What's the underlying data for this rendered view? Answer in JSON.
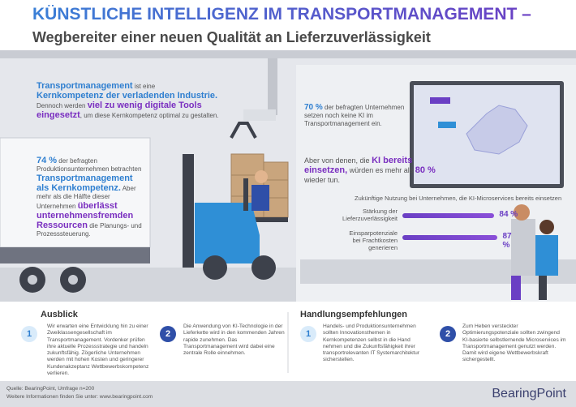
{
  "header": {
    "title": "KÜNSTLICHE INTELLIGENZ IM TRANSPORTMANAGEMENT –",
    "subtitle": "Wegbereiter einer neuen Qualität an Lieferzuverlässigkeit"
  },
  "intro": [
    "Transportmanagement",
    " ist eine ",
    "Kernkompetenz der verladenden Industrie.",
    " Dennoch werden ",
    "viel zu wenig digitale Tools eingesetzt",
    ", um diese Kernkompetenz optimal zu gestalten."
  ],
  "finding_1": [
    "74 %",
    " der befragten Produktionsunternehmen betrachten ",
    "Transportmanagement als Kernkompetenz.",
    " Aber mehr als die Hälfte dieser Unternehmen ",
    "überlässt unternehmensfremden Ressourcen",
    " die Planungs- und Prozesssteuerung."
  ],
  "finding_2": [
    "70 %",
    " der befragten Unternehmen setzen noch keine KI im Transportmanagement ein."
  ],
  "finding_3": [
    "Aber von denen, die ",
    "KI bereits einsetzen,",
    " würden es mehr als ",
    "80 %",
    " wieder tun."
  ],
  "usage": {
    "title": "Zukünftige Nutzung bei Unternehmen, die KI-Microservices bereits einsetzen",
    "bars": [
      {
        "label": "Stärkung der Lieferzuverlässigkeit",
        "value": 84,
        "value_label": "84 %"
      },
      {
        "label": "Einsparpotenziale bei Frachtkosten generieren",
        "value": 87,
        "value_label": "87 %"
      }
    ]
  },
  "outlook": {
    "heading": "Ausblick",
    "items": [
      {
        "number": "1",
        "text": "Wir erwarten eine Entwicklung hin zu einer Zweiklassengesellschaft im Transportmanagement. Vordenker prüfen ihre aktuelle Prozessstrategie und handeln zukunftsfähig. Zögerliche Unternehmen werden mit hohen Kosten und geringerer Kundenakzeptanz Wettbewerbskompetenz verlieren."
      },
      {
        "number": "2",
        "text": "Die Anwendung von KI-Technologie in der Lieferkette wird in den kommenden Jahren rapide zunehmen. Das Transportmanagement wird dabei eine zentrale Rolle einnehmen."
      }
    ]
  },
  "recommendations": {
    "heading": "Handlungsempfehlungen",
    "items": [
      {
        "number": "1",
        "text": "Handels- und Produktionsunternehmen sollten Innovationsthemen in Kernkompetenzen selbst in die Hand nehmen und die Zukunftsfähigkeit ihrer transportrelevanten IT Systemarchitektur sicherstellen."
      },
      {
        "number": "2",
        "text": "Zum Heben versteckter Optimierungspotenziale sollten zwingend KI-basierte selbstlernende Microservices im Transportmanagement genutzt werden. Damit wird eigene Wettbewerbskraft sichergestellt."
      }
    ]
  },
  "footer": {
    "source": "Quelle: BearingPoint, Umfrage n=200",
    "more": "Weitere Informationen finden Sie unter: www.bearingpoint.com",
    "logo": "BearingPoint"
  }
}
